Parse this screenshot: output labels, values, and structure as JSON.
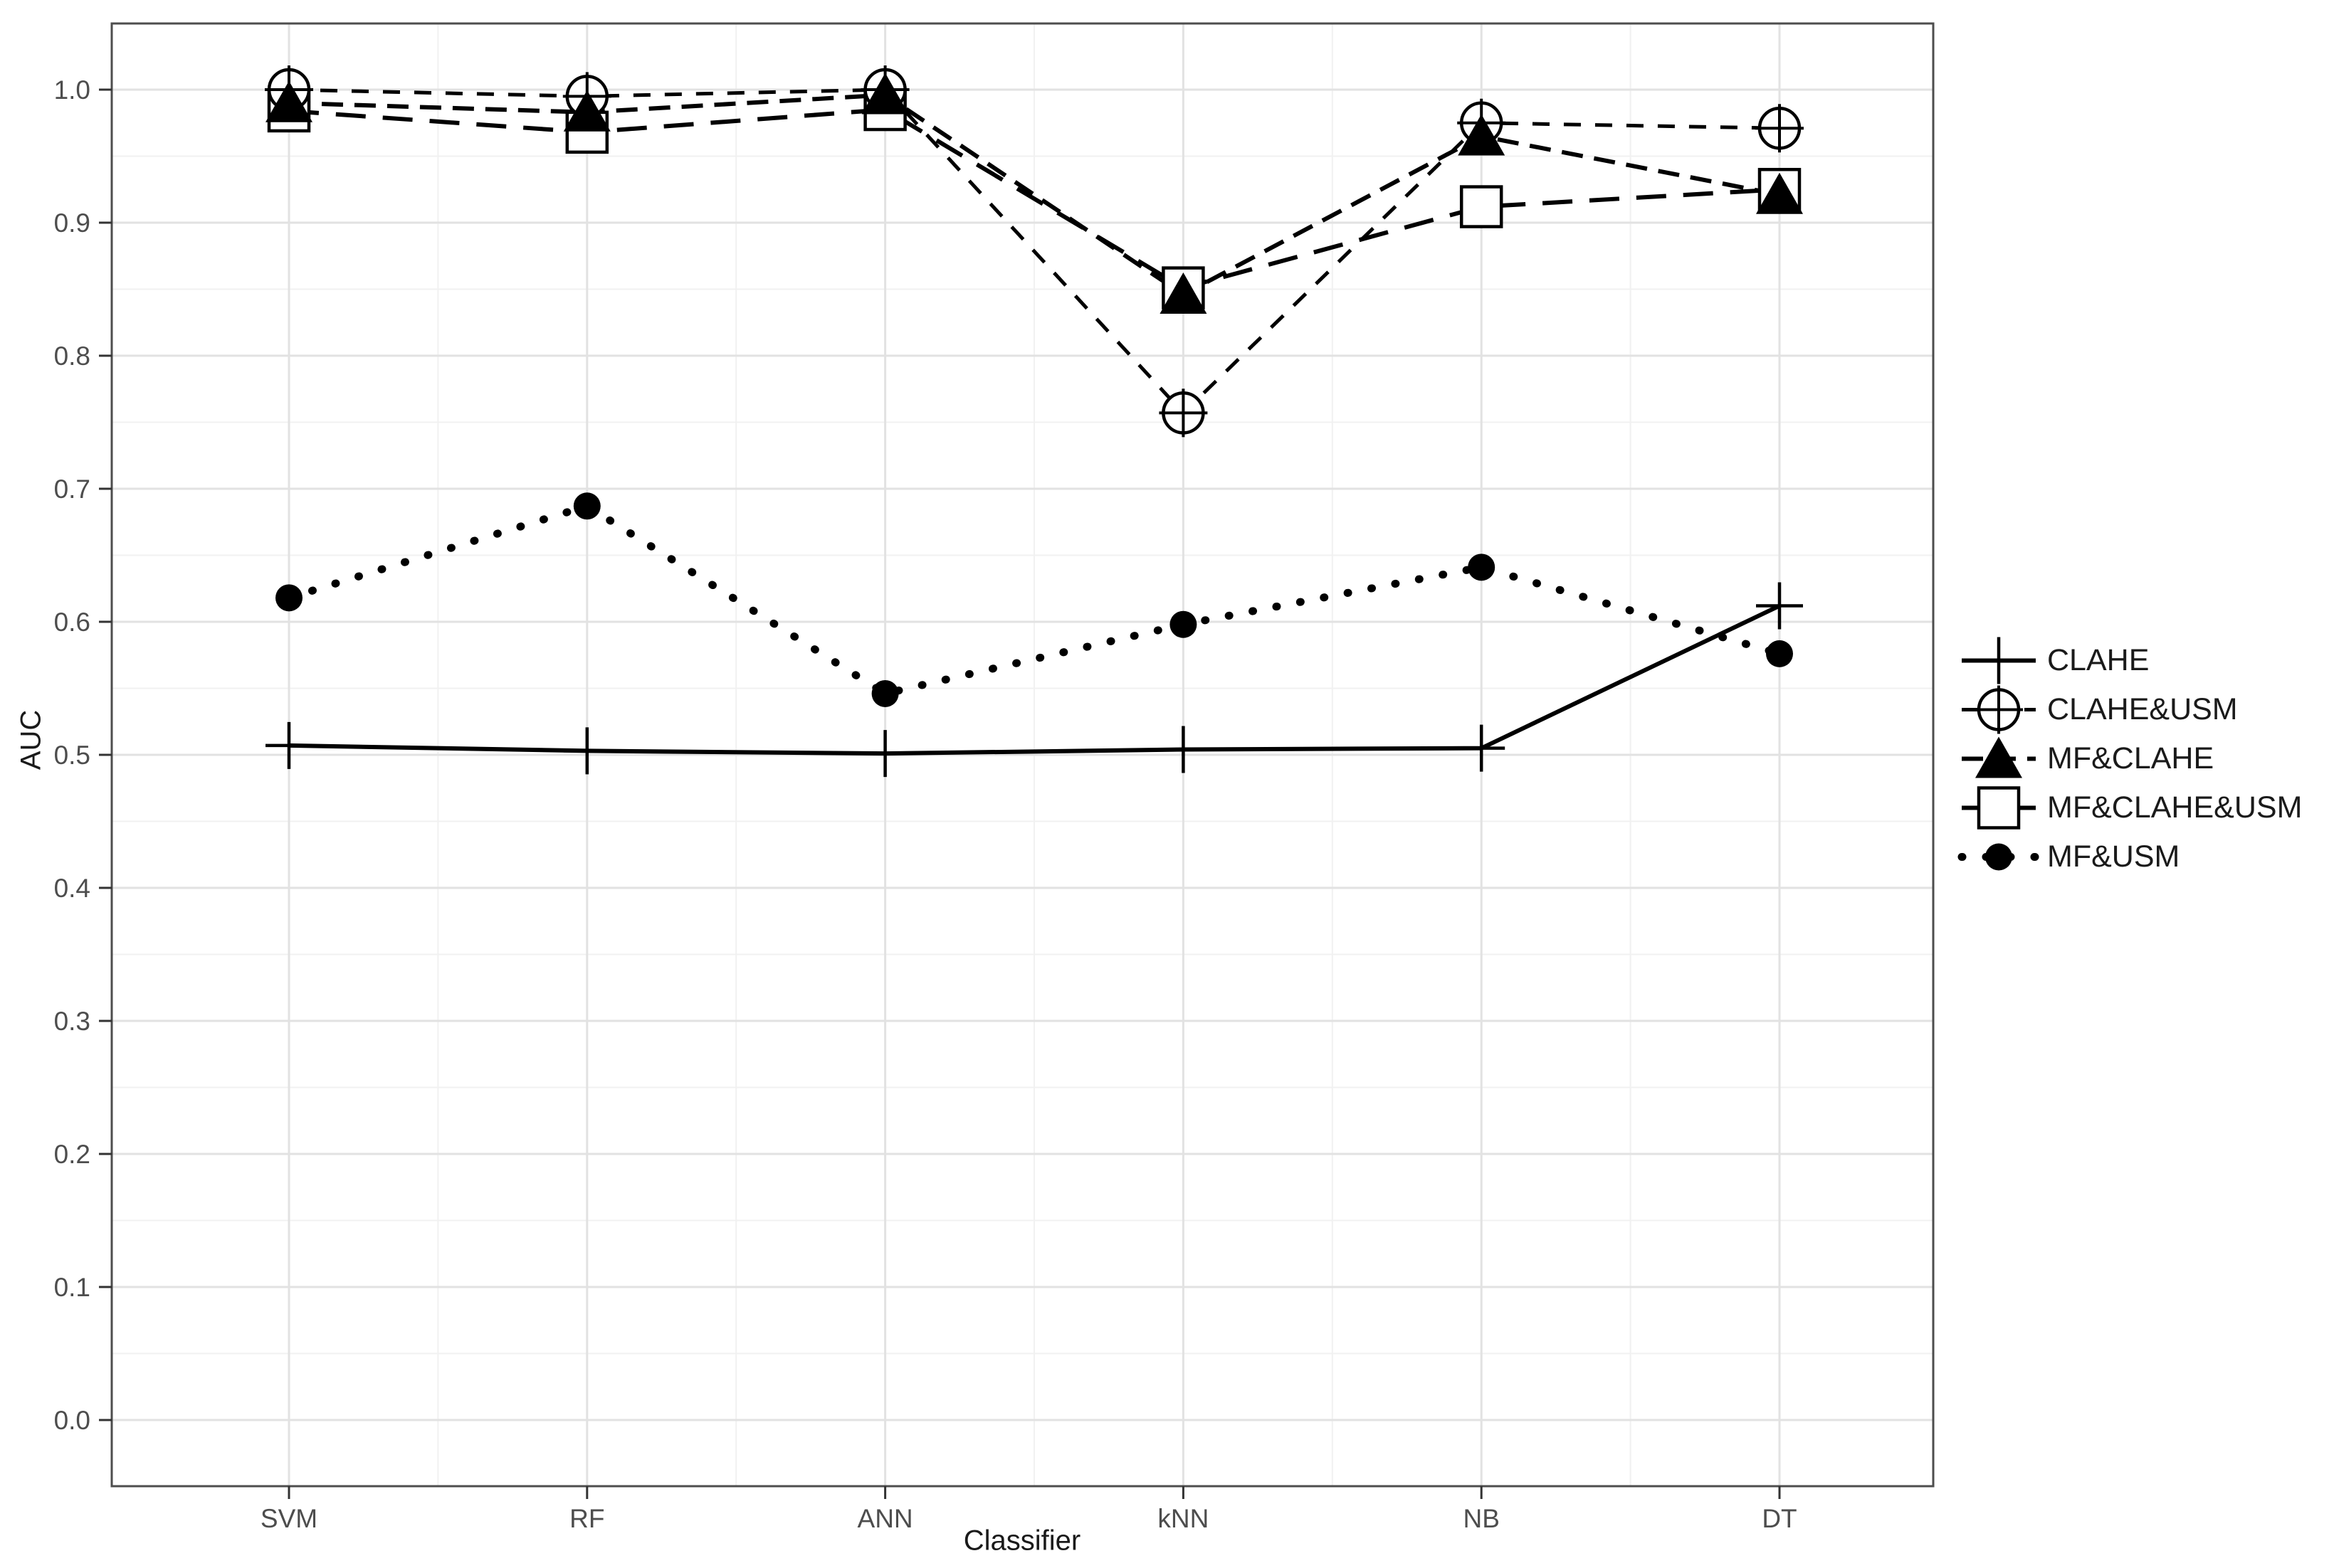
{
  "chart_data": {
    "type": "line",
    "title": "",
    "xlabel": "Classifier",
    "ylabel": "AUC",
    "categories": [
      "SVM",
      "RF",
      "ANN",
      "kNN",
      "NB",
      "DT"
    ],
    "y_ticks": [
      "0.0",
      "0.1",
      "0.2",
      "0.3",
      "0.4",
      "0.5",
      "0.6",
      "0.7",
      "0.8",
      "0.9",
      "1.0"
    ],
    "ylim": [
      0.0,
      1.0
    ],
    "grid": "major and minor horizontal, major and minor vertical, light gray on white",
    "legend_position": "right",
    "colors": {
      "series": "#000000",
      "grid_major": "#e2e2e2",
      "grid_minor": "#f1f1f1",
      "panel_border": "#4d4d4d",
      "tick_label": "#4d4d4d",
      "axis_title": "#1a1a1a",
      "background": "#ffffff"
    },
    "series": [
      {
        "name": "CLAHE",
        "marker": "plus",
        "line": "solid",
        "values": [
          0.507,
          0.503,
          0.501,
          0.504,
          0.505,
          0.612
        ]
      },
      {
        "name": "CLAHE&USM",
        "marker": "circle-cross",
        "line": "dash-short",
        "values": [
          1.0,
          0.995,
          1.0,
          0.757,
          0.975,
          0.971
        ]
      },
      {
        "name": "MF&CLAHE",
        "marker": "triangle-filled",
        "line": "dash",
        "values": [
          0.99,
          0.983,
          0.996,
          0.846,
          0.965,
          0.921
        ]
      },
      {
        "name": "MF&CLAHE&USM",
        "marker": "square-open",
        "line": "dash-long",
        "values": [
          0.984,
          0.968,
          0.985,
          0.851,
          0.912,
          0.925
        ]
      },
      {
        "name": "MF&USM",
        "marker": "circle-filled",
        "line": "dotted",
        "values": [
          0.618,
          0.687,
          0.546,
          0.598,
          0.641,
          0.576
        ]
      }
    ]
  }
}
